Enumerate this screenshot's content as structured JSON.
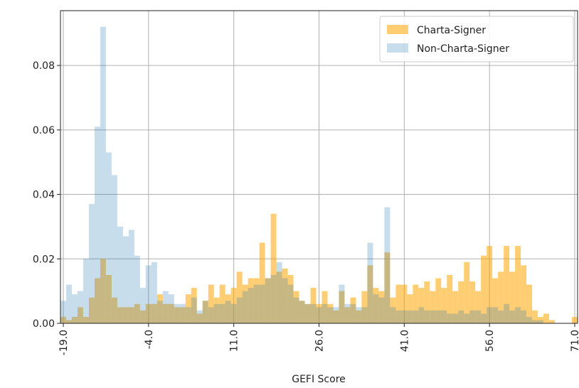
{
  "chart_data": {
    "type": "histogram",
    "xlabel": "GEFI Score",
    "bins": [
      -19.5,
      -18.5,
      -17.5,
      -16.5,
      -15.5,
      -14.5,
      -13.5,
      -12.5,
      -11.5,
      -10.5,
      -9.5,
      -8.5,
      -7.5,
      -6.5,
      -5.5,
      -4.5,
      -3.5,
      -2.5,
      -1.5,
      -0.5,
      0.5,
      1.5,
      2.5,
      3.5,
      4.5,
      5.5,
      6.5,
      7.5,
      8.5,
      9.5,
      10.5,
      11.5,
      12.5,
      13.5,
      14.5,
      15.5,
      16.5,
      17.5,
      18.5,
      19.5,
      20.5,
      21.5,
      22.5,
      23.5,
      24.5,
      25.5,
      26.5,
      27.5,
      28.5,
      29.5,
      30.5,
      31.5,
      32.5,
      33.5,
      34.5,
      35.5,
      36.5,
      37.5,
      38.5,
      39.5,
      40.5,
      41.5,
      42.5,
      43.5,
      44.5,
      45.5,
      46.5,
      47.5,
      48.5,
      49.5,
      50.5,
      51.5,
      52.5,
      53.5,
      54.5,
      55.5,
      56.5,
      57.5,
      58.5,
      59.5,
      60.5,
      61.5,
      62.5,
      63.5,
      64.5,
      65.5,
      66.5,
      67.5,
      68.5,
      69.5,
      70.5,
      71.5
    ],
    "series": [
      {
        "name": "Charta-Signer",
        "color": "#ffa500",
        "values": [
          0.002,
          0.001,
          0.002,
          0.005,
          0.002,
          0.008,
          0.014,
          0.02,
          0.015,
          0.008,
          0.005,
          0.005,
          0.005,
          0.006,
          0.004,
          0.006,
          0.006,
          0.009,
          0.006,
          0.006,
          0.005,
          0.005,
          0.009,
          0.011,
          0.003,
          0.007,
          0.012,
          0.008,
          0.012,
          0.009,
          0.011,
          0.016,
          0.012,
          0.014,
          0.014,
          0.025,
          0.014,
          0.034,
          0.016,
          0.017,
          0.015,
          0.01,
          0.007,
          0.006,
          0.011,
          0.006,
          0.01,
          0.006,
          0.004,
          0.01,
          0.005,
          0.008,
          0.004,
          0.01,
          0.018,
          0.011,
          0.01,
          0.022,
          0.008,
          0.012,
          0.012,
          0.009,
          0.012,
          0.011,
          0.013,
          0.01,
          0.014,
          0.011,
          0.015,
          0.01,
          0.013,
          0.019,
          0.013,
          0.01,
          0.021,
          0.024,
          0.014,
          0.016,
          0.024,
          0.016,
          0.024,
          0.018,
          0.012,
          0.004,
          0.002,
          0.003,
          0.001,
          0,
          0,
          0,
          0.002
        ]
      },
      {
        "name": "Non-Charta-Signer",
        "color": "#1f77b4",
        "values": [
          0.007,
          0.012,
          0.009,
          0.01,
          0.02,
          0.037,
          0.061,
          0.092,
          0.053,
          0.046,
          0.03,
          0.027,
          0.029,
          0.021,
          0.011,
          0.018,
          0.019,
          0.007,
          0.01,
          0.009,
          0.006,
          0.006,
          0.005,
          0.008,
          0.004,
          0.007,
          0.005,
          0.006,
          0.006,
          0.007,
          0.006,
          0.008,
          0.01,
          0.011,
          0.012,
          0.012,
          0.014,
          0.015,
          0.019,
          0.014,
          0.012,
          0.008,
          0.007,
          0.006,
          0.006,
          0.005,
          0.006,
          0.005,
          0.005,
          0.012,
          0.006,
          0.006,
          0.005,
          0.005,
          0.025,
          0.009,
          0.008,
          0.036,
          0.005,
          0.004,
          0.004,
          0.004,
          0.004,
          0.005,
          0.004,
          0.004,
          0.004,
          0.004,
          0.003,
          0.003,
          0.004,
          0.003,
          0.004,
          0.004,
          0.003,
          0.005,
          0.005,
          0.004,
          0.006,
          0.004,
          0.005,
          0.004,
          0.002,
          0.001,
          0.001,
          0,
          0,
          0,
          0,
          0,
          0
        ]
      }
    ],
    "xlim": [
      -19.5,
      71.5
    ],
    "ylim": [
      0,
      0.097
    ],
    "xticks": [
      {
        "value": -19,
        "label": "-19.0"
      },
      {
        "value": -4,
        "label": "-4.0"
      },
      {
        "value": 11,
        "label": "11.0"
      },
      {
        "value": 26,
        "label": "26.0"
      },
      {
        "value": 41,
        "label": "41.0"
      },
      {
        "value": 56,
        "label": "56.0"
      },
      {
        "value": 71,
        "label": "71.0"
      }
    ],
    "yticks": [
      {
        "value": 0,
        "label": "0.00"
      },
      {
        "value": 0.02,
        "label": "0.02"
      },
      {
        "value": 0.04,
        "label": "0.04"
      },
      {
        "value": 0.06,
        "label": "0.06"
      },
      {
        "value": 0.08,
        "label": "0.08"
      }
    ],
    "grid": true,
    "legend": "upper right"
  }
}
